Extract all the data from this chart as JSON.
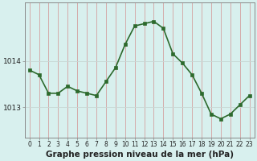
{
  "x": [
    0,
    1,
    2,
    3,
    4,
    5,
    6,
    7,
    8,
    9,
    10,
    11,
    12,
    13,
    14,
    15,
    16,
    17,
    18,
    19,
    20,
    21,
    22,
    23
  ],
  "y": [
    1013.8,
    1013.7,
    1013.3,
    1013.3,
    1013.45,
    1013.35,
    1013.3,
    1013.25,
    1013.55,
    1013.85,
    1014.35,
    1014.75,
    1014.8,
    1014.85,
    1014.7,
    1014.15,
    1013.95,
    1013.7,
    1013.3,
    1012.85,
    1012.75,
    1012.85,
    1013.05,
    1013.25
  ],
  "line_color": "#2d6a2d",
  "marker_color": "#2d6a2d",
  "bg_color": "#d8f0ee",
  "plot_bg_color": "#d8f0ee",
  "vgrid_color": "#d4a0a0",
  "hgrid_color": "#c8d8d4",
  "xlabel": "Graphe pression niveau de la mer (hPa)",
  "xlabel_fontsize": 7.5,
  "ytick_labels": [
    "1013",
    "1014"
  ],
  "ytick_values": [
    1013.0,
    1014.0
  ],
  "ylim": [
    1012.35,
    1015.25
  ],
  "xlim": [
    -0.5,
    23.5
  ],
  "tick_color": "#222222",
  "axis_color": "#888888",
  "line_width": 1.2,
  "marker_size": 2.5,
  "figsize": [
    3.2,
    2.0
  ],
  "dpi": 100
}
